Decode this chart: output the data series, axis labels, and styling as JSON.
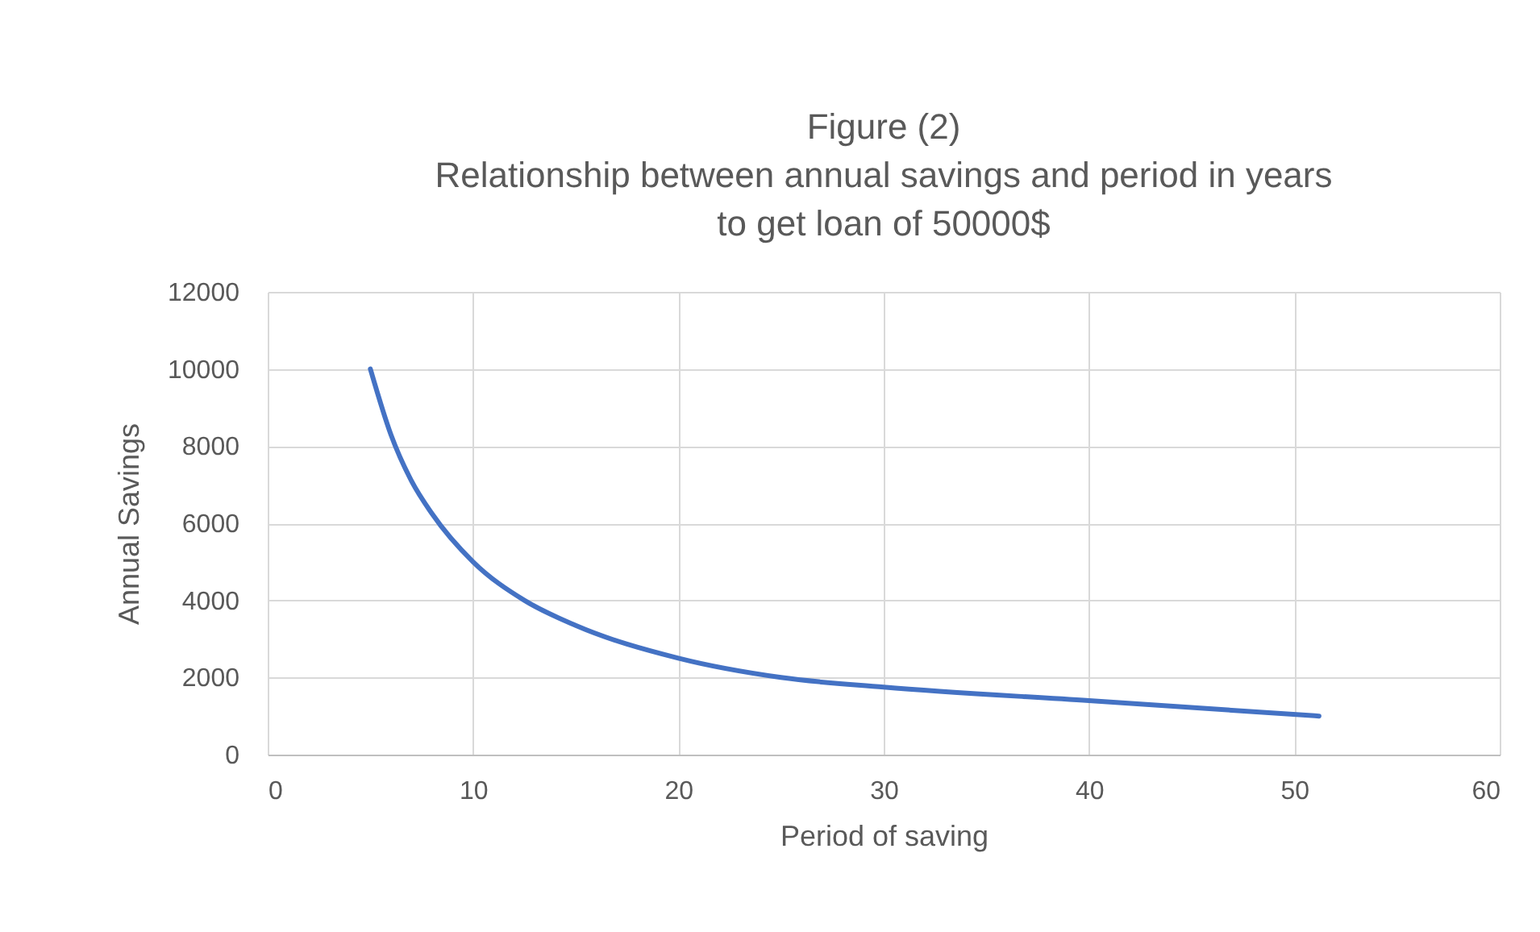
{
  "chart_data": {
    "type": "line",
    "title": "Figure (2)\nRelationship between annual savings and period in years\nto get loan of 50000$",
    "xlabel": "Period of saving",
    "ylabel": "Annual Savings",
    "x": [
      5,
      6,
      7,
      8,
      10,
      12.5,
      15,
      20,
      25,
      30,
      40,
      51.2
    ],
    "series": [
      {
        "color": "#4472c4",
        "values": [
          10000,
          8300,
          7100,
          6250,
          5000,
          4000,
          3350,
          2500,
          2000,
          1750,
          1400,
          1000
        ]
      }
    ],
    "xlim": [
      0,
      60
    ],
    "xticks": [
      0,
      10,
      20,
      30,
      40,
      50,
      60
    ],
    "ylim": [
      0,
      12000
    ],
    "yticks": [
      0,
      2000,
      4000,
      6000,
      8000,
      10000,
      12000
    ],
    "grid": true,
    "marker": "none",
    "line_style": "solid"
  }
}
